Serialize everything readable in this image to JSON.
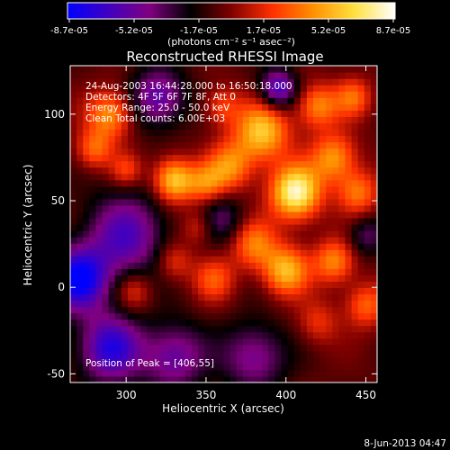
{
  "chart_data": {
    "type": "heatmap",
    "title": "Reconstructed RHESSI Image",
    "xlabel": "Heliocentric X (arcsec)",
    "ylabel": "Heliocentric Y (arcsec)",
    "xlim": [
      265,
      457
    ],
    "ylim": [
      -55,
      128
    ],
    "xticks": [
      300,
      350,
      400,
      450
    ],
    "yticks": [
      -50,
      0,
      50,
      100
    ],
    "colorbar": {
      "min": -8.7e-05,
      "max": 8.7e-05,
      "tick_labels": [
        "-8.7e-05",
        "-5.2e-05",
        "-1.7e-05",
        "1.7e-05",
        "5.2e-05",
        "8.7e-05"
      ],
      "unit_label": "(photons cm⁻² s⁻¹ asec⁻²)",
      "colormap": [
        "#0000ff",
        "#4000c0",
        "#800080",
        "#000000",
        "#800000",
        "#ff3000",
        "#ff9000",
        "#ffe040",
        "#ffffff"
      ]
    },
    "annotations": [
      "24-Aug-2003 16:44:28.000 to 16:50:18.000",
      "Detectors: 4F 5F 6F 7F 8F, Att 0",
      "Energy Range: 25.0 - 50.0 keV",
      "Clean    Total counts: 6.00E+03"
    ],
    "peak_label": "Position of Peak = [406,55]",
    "peak": {
      "x": 406,
      "y": 55
    },
    "blobs": [
      {
        "x": 406,
        "y": 55,
        "amp": 1.0,
        "s": 11
      },
      {
        "x": 385,
        "y": 90,
        "amp": 0.75,
        "s": 12
      },
      {
        "x": 365,
        "y": 70,
        "amp": 0.55,
        "s": 10
      },
      {
        "x": 330,
        "y": 62,
        "amp": 0.8,
        "s": 9
      },
      {
        "x": 350,
        "y": 60,
        "amp": 0.45,
        "s": 8
      },
      {
        "x": 290,
        "y": 100,
        "amp": 0.6,
        "s": 10
      },
      {
        "x": 280,
        "y": 80,
        "amp": 0.45,
        "s": 8
      },
      {
        "x": 300,
        "y": 68,
        "amp": 0.35,
        "s": 7
      },
      {
        "x": 430,
        "y": 75,
        "amp": 0.6,
        "s": 10
      },
      {
        "x": 445,
        "y": 55,
        "amp": 0.5,
        "s": 9
      },
      {
        "x": 420,
        "y": 105,
        "amp": 0.55,
        "s": 9
      },
      {
        "x": 442,
        "y": 110,
        "amp": 0.45,
        "s": 8
      },
      {
        "x": 380,
        "y": 25,
        "amp": 0.5,
        "s": 10
      },
      {
        "x": 400,
        "y": 10,
        "amp": 0.7,
        "s": 10
      },
      {
        "x": 430,
        "y": 15,
        "amp": 0.55,
        "s": 9
      },
      {
        "x": 355,
        "y": 5,
        "amp": 0.4,
        "s": 9
      },
      {
        "x": 330,
        "y": 15,
        "amp": 0.35,
        "s": 8
      },
      {
        "x": 305,
        "y": -2,
        "amp": 0.35,
        "s": 8
      },
      {
        "x": 450,
        "y": -10,
        "amp": 0.45,
        "s": 9
      },
      {
        "x": 420,
        "y": -20,
        "amp": 0.3,
        "s": 9
      },
      {
        "x": 360,
        "y": 105,
        "amp": 0.35,
        "s": 8
      },
      {
        "x": 345,
        "y": 35,
        "amp": 0.3,
        "s": 7
      },
      {
        "x": 270,
        "y": 5,
        "amp": -0.9,
        "s": 13
      },
      {
        "x": 300,
        "y": 30,
        "amp": -0.6,
        "s": 18
      },
      {
        "x": 290,
        "y": -35,
        "amp": -0.75,
        "s": 14
      },
      {
        "x": 330,
        "y": -40,
        "amp": -0.55,
        "s": 14
      },
      {
        "x": 380,
        "y": -40,
        "amp": -0.5,
        "s": 14
      },
      {
        "x": 320,
        "y": 110,
        "amp": -0.6,
        "s": 12
      },
      {
        "x": 395,
        "y": 115,
        "amp": -0.7,
        "s": 8
      },
      {
        "x": 360,
        "y": 40,
        "amp": -0.35,
        "s": 10
      },
      {
        "x": 450,
        "y": 30,
        "amp": -0.35,
        "s": 8
      }
    ]
  },
  "footer_date": "8-Jun-2013 04:47"
}
